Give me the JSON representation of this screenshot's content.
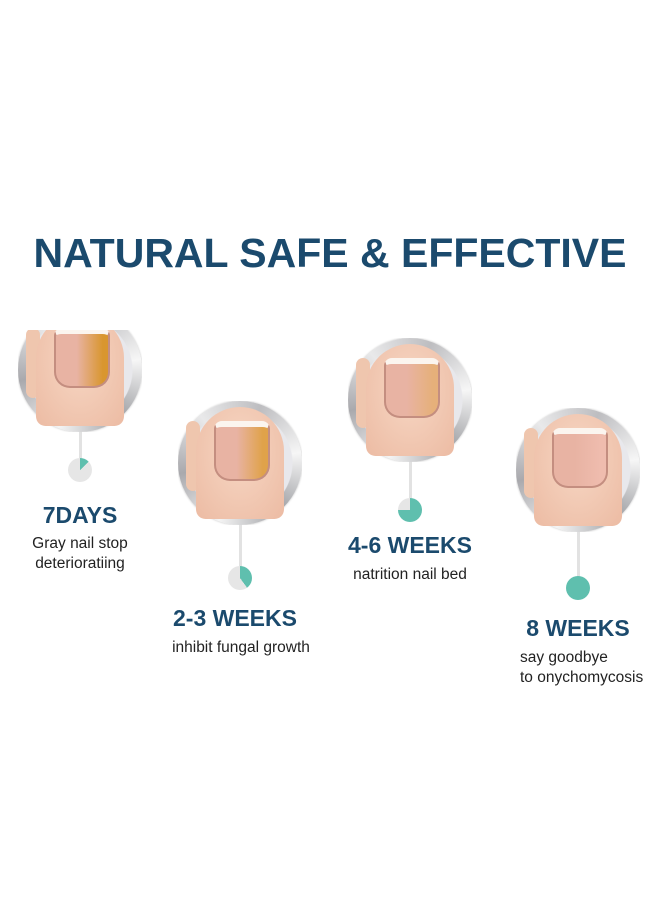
{
  "title": "NATURAL SAFE & EFFECTIVE",
  "colors": {
    "title": "#1b4a6d",
    "accent": "#5fbfae",
    "dot_bg": "#e6e6e6"
  },
  "stages": [
    {
      "heading": "7DAYS",
      "lines": [
        "Gray nail stop",
        "deterioratiing"
      ],
      "progress_percent": 12.5,
      "nail_color": "#d9962f"
    },
    {
      "heading": "2-3 WEEKS",
      "lines": [
        "inhibit fungal growth"
      ],
      "progress_percent": 40,
      "nail_color": "#e0a24a"
    },
    {
      "heading": "4-6 WEEKS",
      "lines": [
        "natrition nail bed"
      ],
      "progress_percent": 75,
      "nail_color": "#e6b07a"
    },
    {
      "heading": "8 WEEKS",
      "lines": [
        "say goodbye",
        "to onychomycosis"
      ],
      "progress_percent": 100,
      "nail_color": "#efbcae"
    }
  ]
}
